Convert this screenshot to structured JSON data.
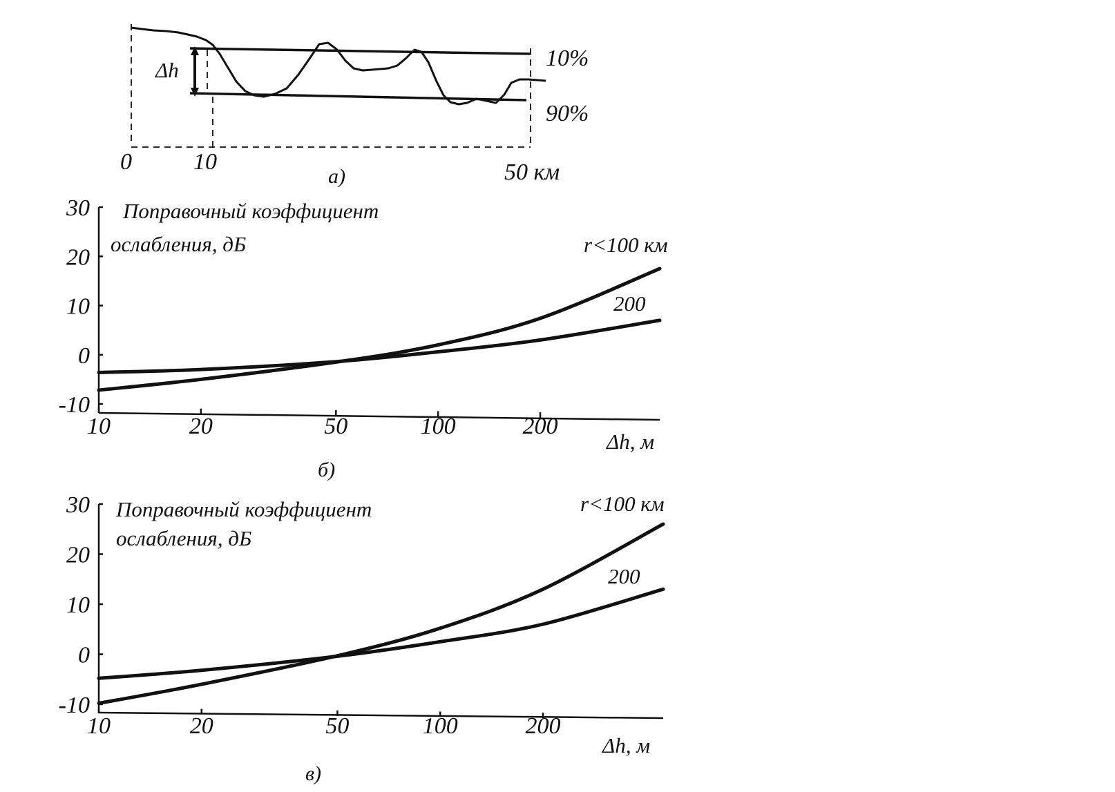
{
  "panel_a": {
    "type": "terrain_profile",
    "x_ticks": [
      "0",
      "10",
      "50 км"
    ],
    "delta_label": "Δh",
    "level_labels": [
      "10%",
      "90%"
    ],
    "panel_label": "а)"
  },
  "chart_data": [
    {
      "type": "line",
      "panel_label": "б)",
      "y_title": [
        "Поправочный коэффициент",
        "ослабления, дБ"
      ],
      "xlabel": "Δh, м",
      "x_scale": "log",
      "x_ticks": [
        "10",
        "20",
        "50",
        "100",
        "200"
      ],
      "x_tick_values": [
        10,
        20,
        50,
        100,
        200
      ],
      "xlim": [
        10,
        450
      ],
      "y_ticks": [
        "30",
        "20",
        "10",
        "0",
        "-10"
      ],
      "y_tick_values": [
        30,
        20,
        10,
        0,
        -10
      ],
      "ylim": [
        -10,
        30
      ],
      "series": [
        {
          "name": "r<100 км",
          "x": [
            10,
            20,
            50,
            100,
            200,
            450
          ],
          "y": [
            -7.2,
            -5.0,
            -1.5,
            2.0,
            7.4,
            17.5
          ]
        },
        {
          "name": "200",
          "x": [
            10,
            20,
            50,
            100,
            200,
            450
          ],
          "y": [
            -3.6,
            -3.0,
            -1.4,
            0.6,
            3.0,
            7.0
          ]
        }
      ]
    },
    {
      "type": "line",
      "panel_label": "в)",
      "y_title": [
        "Поправочный коэффициент",
        "ослабления, дБ"
      ],
      "xlabel": "Δh, м",
      "x_scale": "log",
      "x_ticks": [
        "10",
        "20",
        "50",
        "100",
        "200"
      ],
      "x_tick_values": [
        10,
        20,
        50,
        100,
        200
      ],
      "xlim": [
        10,
        450
      ],
      "y_ticks": [
        "30",
        "20",
        "10",
        "0",
        "-10"
      ],
      "y_tick_values": [
        30,
        20,
        10,
        0,
        -10
      ],
      "ylim": [
        -10,
        30
      ],
      "series": [
        {
          "name": "r<100 км",
          "x": [
            10,
            20,
            50,
            100,
            200,
            450
          ],
          "y": [
            -9.8,
            -6.0,
            -0.3,
            5.2,
            13.0,
            26.0
          ]
        },
        {
          "name": "200",
          "x": [
            10,
            20,
            50,
            100,
            200,
            450
          ],
          "y": [
            -4.8,
            -3.2,
            -0.4,
            2.5,
            6.0,
            13.0
          ]
        }
      ]
    }
  ]
}
